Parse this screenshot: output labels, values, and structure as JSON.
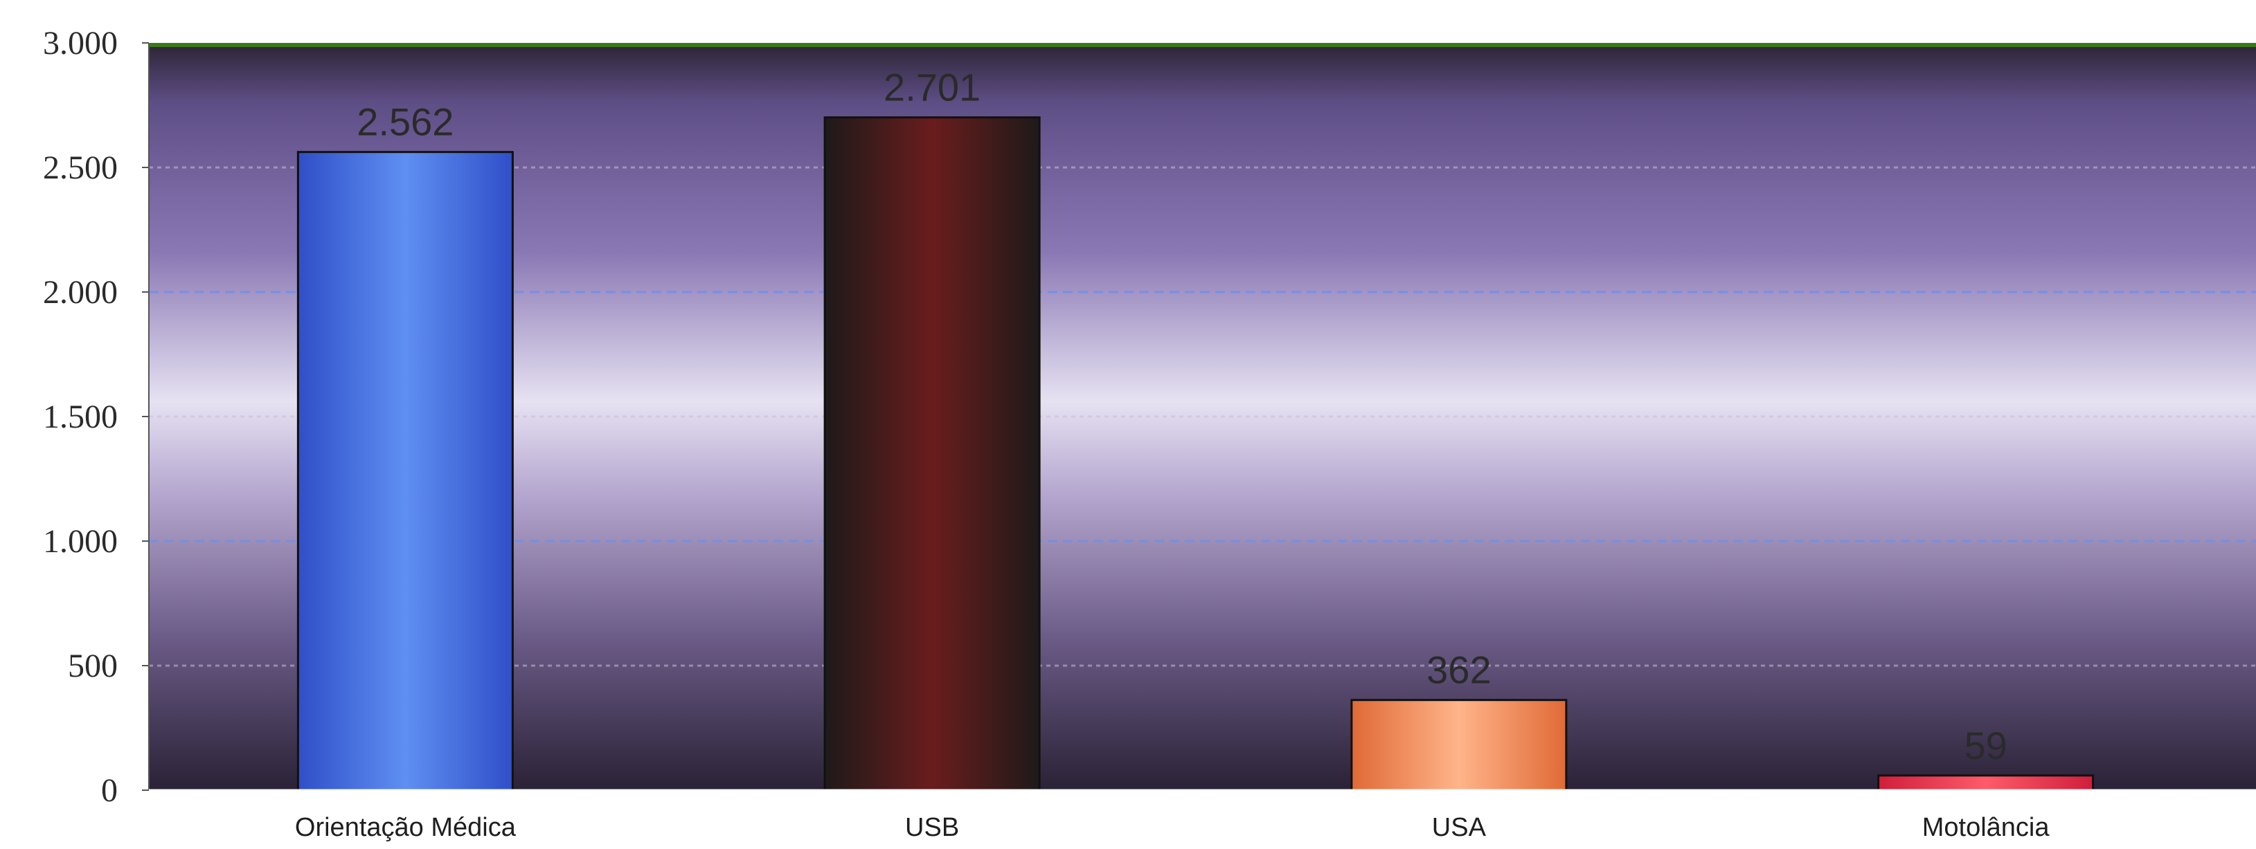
{
  "chart_data": {
    "type": "bar",
    "categories": [
      "Orientação Médica",
      "USB",
      "USA",
      "Motolância"
    ],
    "values": [
      2562,
      2701,
      362,
      59
    ],
    "value_labels": [
      "2.562",
      "2.701",
      "362",
      "59"
    ],
    "ylim": [
      0,
      3000
    ],
    "y_ticks": [
      0,
      500,
      1000,
      1500,
      2000,
      2500,
      3000
    ],
    "y_tick_labels": [
      "0",
      "500",
      "1.000",
      "1.500",
      "2.000",
      "2.500",
      "3.000"
    ],
    "grid": true,
    "legend": "none",
    "colors": {
      "bars": [
        "#3f6fe0",
        "#2a1a1a",
        "#f08a52",
        "#e0304a"
      ],
      "grid_major": "#6f90e8",
      "grid_minor": "#c8c0d8",
      "top_band": "#3a7a1a"
    }
  }
}
